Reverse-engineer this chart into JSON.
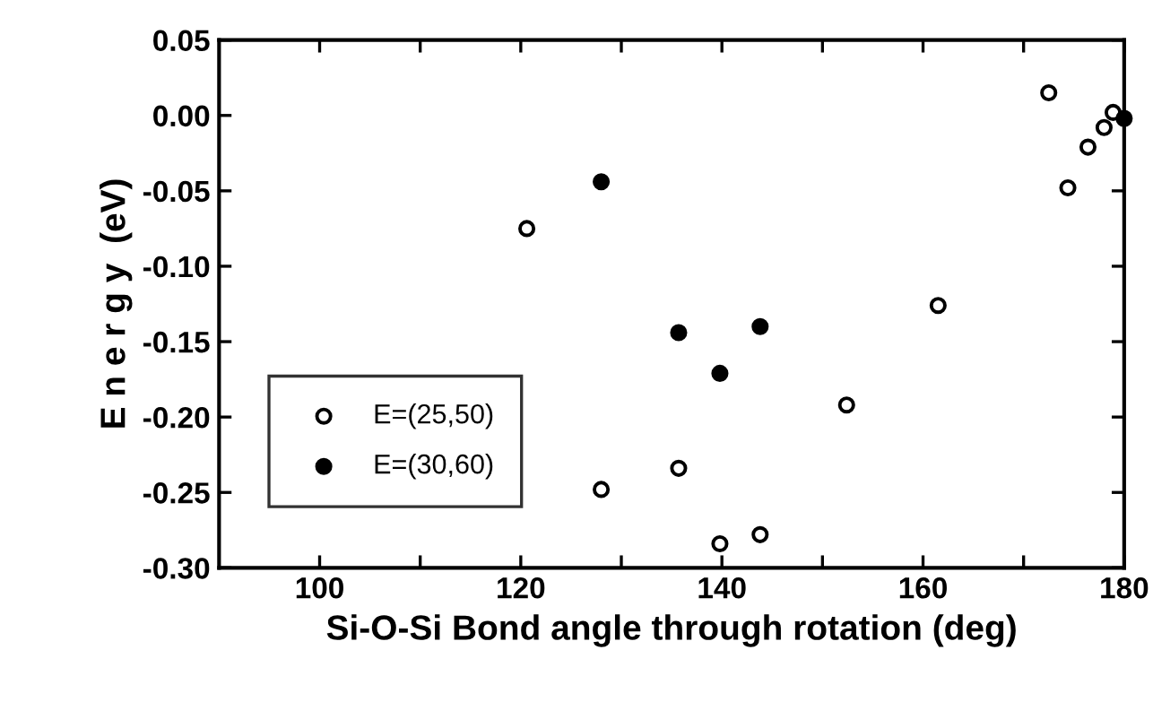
{
  "chart_data": {
    "type": "scatter",
    "xlabel": "Si-O-Si Bond angle through rotation (deg)",
    "ylabel": "E n e r g y  (eV)",
    "xlim": [
      90,
      180
    ],
    "ylim": [
      -0.3,
      0.05
    ],
    "xticks": [
      {
        "value": 100,
        "label": "100"
      },
      {
        "value": 110,
        "label": null
      },
      {
        "value": 120,
        "label": "120"
      },
      {
        "value": 130,
        "label": null
      },
      {
        "value": 140,
        "label": "140"
      },
      {
        "value": 150,
        "label": null
      },
      {
        "value": 160,
        "label": "160"
      },
      {
        "value": 170,
        "label": null
      },
      {
        "value": 180,
        "label": "180"
      }
    ],
    "yticks": [
      {
        "value": 0.05,
        "label": "0.05"
      },
      {
        "value": 0.0,
        "label": "0.00"
      },
      {
        "value": -0.05,
        "label": "-0.05"
      },
      {
        "value": -0.1,
        "label": "-0.10"
      },
      {
        "value": -0.15,
        "label": "-0.15"
      },
      {
        "value": -0.2,
        "label": "-0.20"
      },
      {
        "value": -0.25,
        "label": "-0.25"
      },
      {
        "value": -0.3,
        "label": "-0.30"
      }
    ],
    "marker": "circle",
    "legend": "bottom left",
    "grid": false,
    "series": [
      {
        "name": "E=(25,50)",
        "color": "#ffffff",
        "x": [
          120.6,
          128.0,
          135.7,
          139.8,
          143.8,
          152.4,
          161.5,
          172.5,
          174.4,
          176.4,
          178.0,
          178.9
        ],
        "values": [
          -0.075,
          -0.248,
          -0.234,
          -0.284,
          -0.278,
          -0.192,
          -0.126,
          0.015,
          -0.048,
          -0.021,
          -0.008,
          0.002
        ]
      },
      {
        "name": "E=(30,60)",
        "color": "#000000",
        "x": [
          128.0,
          135.7,
          139.8,
          143.8,
          180.0
        ],
        "values": [
          -0.044,
          -0.144,
          -0.171,
          -0.14,
          -0.002
        ]
      }
    ]
  }
}
